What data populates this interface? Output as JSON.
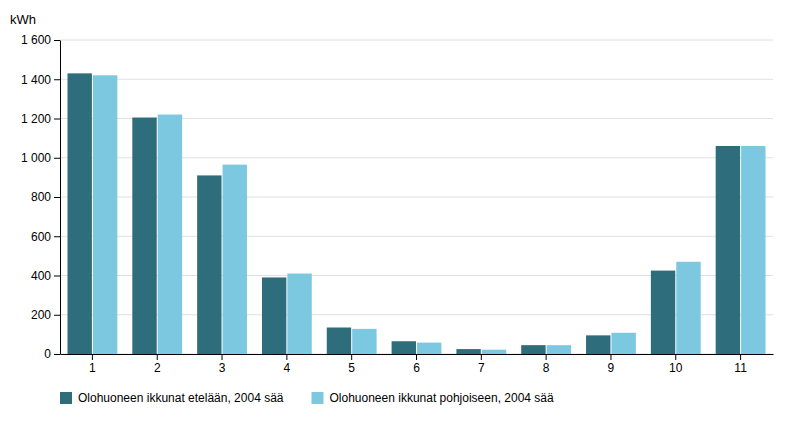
{
  "chart_data": {
    "type": "bar",
    "ylabel": "kWh",
    "categories": [
      1,
      2,
      3,
      4,
      5,
      6,
      7,
      8,
      9,
      10,
      11
    ],
    "series": [
      {
        "name": "Olohuoneen ikkunat etelään,  2004 sää",
        "color": "#2E6D7B",
        "values": [
          1430,
          1205,
          910,
          390,
          135,
          65,
          25,
          45,
          95,
          425,
          1060
        ]
      },
      {
        "name": "Olohuoneen ikkunat pohjoiseen,  2004 sää",
        "color": "#7BC8E0",
        "values": [
          1420,
          1220,
          965,
          410,
          128,
          58,
          22,
          45,
          108,
          470,
          1060
        ]
      }
    ],
    "ylim": [
      0,
      1600
    ],
    "yticks": [
      0,
      200,
      400,
      600,
      800,
      {
        "value": 1000,
        "label": "1 000"
      },
      {
        "value": 1200,
        "label": "1 200"
      },
      {
        "value": 1400,
        "label": "1 400"
      },
      {
        "value": 1600,
        "label": "1 600"
      }
    ],
    "grid": true,
    "legend": "lower left"
  }
}
